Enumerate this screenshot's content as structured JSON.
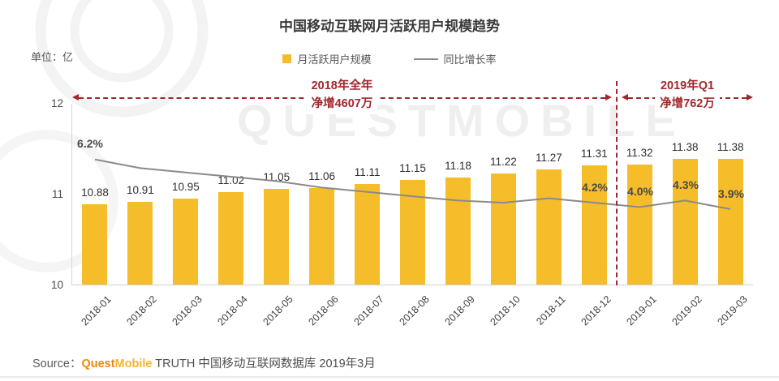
{
  "title": "中国移动互联网月活跃用户规模趋势",
  "unit_label": "单位：亿",
  "legend": {
    "bar_label": "月活跃用户规模",
    "line_label": "同比增长率"
  },
  "annotations": {
    "period_2018": {
      "line1": "2018年全年",
      "line2": "净增4607万"
    },
    "period_2019q1": {
      "line1": "2019年Q1",
      "line2": "净增762万"
    }
  },
  "watermark_text": "QUESTMOBILE",
  "source": {
    "prefix": "Source：",
    "brand_part1": "Quest",
    "brand_part2": "Mobile",
    "suffix": " TRUTH 中国移动互联网数据库 2019年3月"
  },
  "colors": {
    "bar": "#f6bd2b",
    "line": "#8a8a8a",
    "annotation_red": "#a1272e",
    "brand_orange": "#ef8511",
    "brand_amber": "#f6b52b"
  },
  "chart_data": {
    "type": "bar+line",
    "title": "中国移动互联网月活跃用户规模趋势",
    "unit": "亿",
    "legend_position": "top",
    "grid": false,
    "categories": [
      "2018-01",
      "2018-02",
      "2018-03",
      "2018-04",
      "2018-05",
      "2018-06",
      "2018-07",
      "2018-08",
      "2018-09",
      "2018-10",
      "2018-11",
      "2018-12",
      "2019-01",
      "2019-02",
      "2019-03"
    ],
    "y_axis": {
      "ticks": [
        "12",
        "11",
        "10"
      ],
      "min": 10,
      "max": 12
    },
    "series": [
      {
        "name": "月活跃用户规模",
        "type": "bar",
        "unit": "亿",
        "values": [
          10.88,
          10.91,
          10.95,
          11.02,
          11.05,
          11.06,
          11.11,
          11.15,
          11.18,
          11.22,
          11.27,
          11.31,
          11.32,
          11.38,
          11.38
        ]
      },
      {
        "name": "同比增长率",
        "type": "line",
        "unit": "%",
        "values": [
          6.2,
          5.8,
          5.6,
          5.4,
          5.2,
          4.9,
          4.7,
          4.5,
          4.3,
          4.2,
          4.4,
          4.2,
          4.0,
          4.3,
          3.9
        ],
        "labeled_points": {
          "2018-01": 6.2,
          "2018-12": 4.2,
          "2019-01": 4.0,
          "2019-02": 4.3,
          "2019-03": 3.9
        },
        "note": "only labeled_points are printed on the chart; other line values estimated from curve"
      }
    ]
  }
}
